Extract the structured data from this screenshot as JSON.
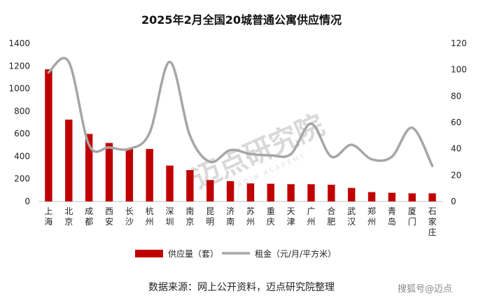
{
  "chart_data": {
    "type": "bar+line",
    "title": "2025年2月全国20城普通公寓供应情况",
    "categories": [
      "上海",
      "北京",
      "成都",
      "西安",
      "长沙",
      "杭州",
      "深圳",
      "南京",
      "昆明",
      "济南",
      "苏州",
      "重庆",
      "天津",
      "广州",
      "合肥",
      "武汉",
      "郑州",
      "青岛",
      "厦门",
      "石家庄"
    ],
    "series": [
      {
        "name": "供应量（套）",
        "type": "bar",
        "axis": "left",
        "color": "#c00000",
        "values": [
          1170,
          725,
          598,
          518,
          468,
          465,
          318,
          278,
          190,
          180,
          160,
          157,
          153,
          153,
          148,
          120,
          83,
          77,
          72,
          72
        ]
      },
      {
        "name": "租金（元/月/平方米）",
        "type": "line",
        "axis": "right",
        "color": "#a6a6a6",
        "values": [
          98,
          106,
          43,
          41,
          40,
          52,
          106,
          50,
          30,
          39,
          36,
          35,
          36,
          59,
          34,
          43,
          32,
          34,
          56,
          27
        ]
      }
    ],
    "y_left": {
      "min": 0,
      "max": 1400,
      "ticks": [
        0,
        200,
        400,
        600,
        800,
        1000,
        1200,
        1400
      ]
    },
    "y_right": {
      "min": 0,
      "max": 120,
      "ticks": [
        0,
        20,
        40,
        60,
        80,
        100,
        120
      ]
    },
    "grid": false,
    "legend_position": "bottom"
  },
  "source_text": "数据来源：网上公开资料，迈点研究院整理",
  "watermark": {
    "text": "迈点研究院",
    "subtext": "MEADIN ACADEMY"
  },
  "brand_tag": "搜狐号@迈点"
}
